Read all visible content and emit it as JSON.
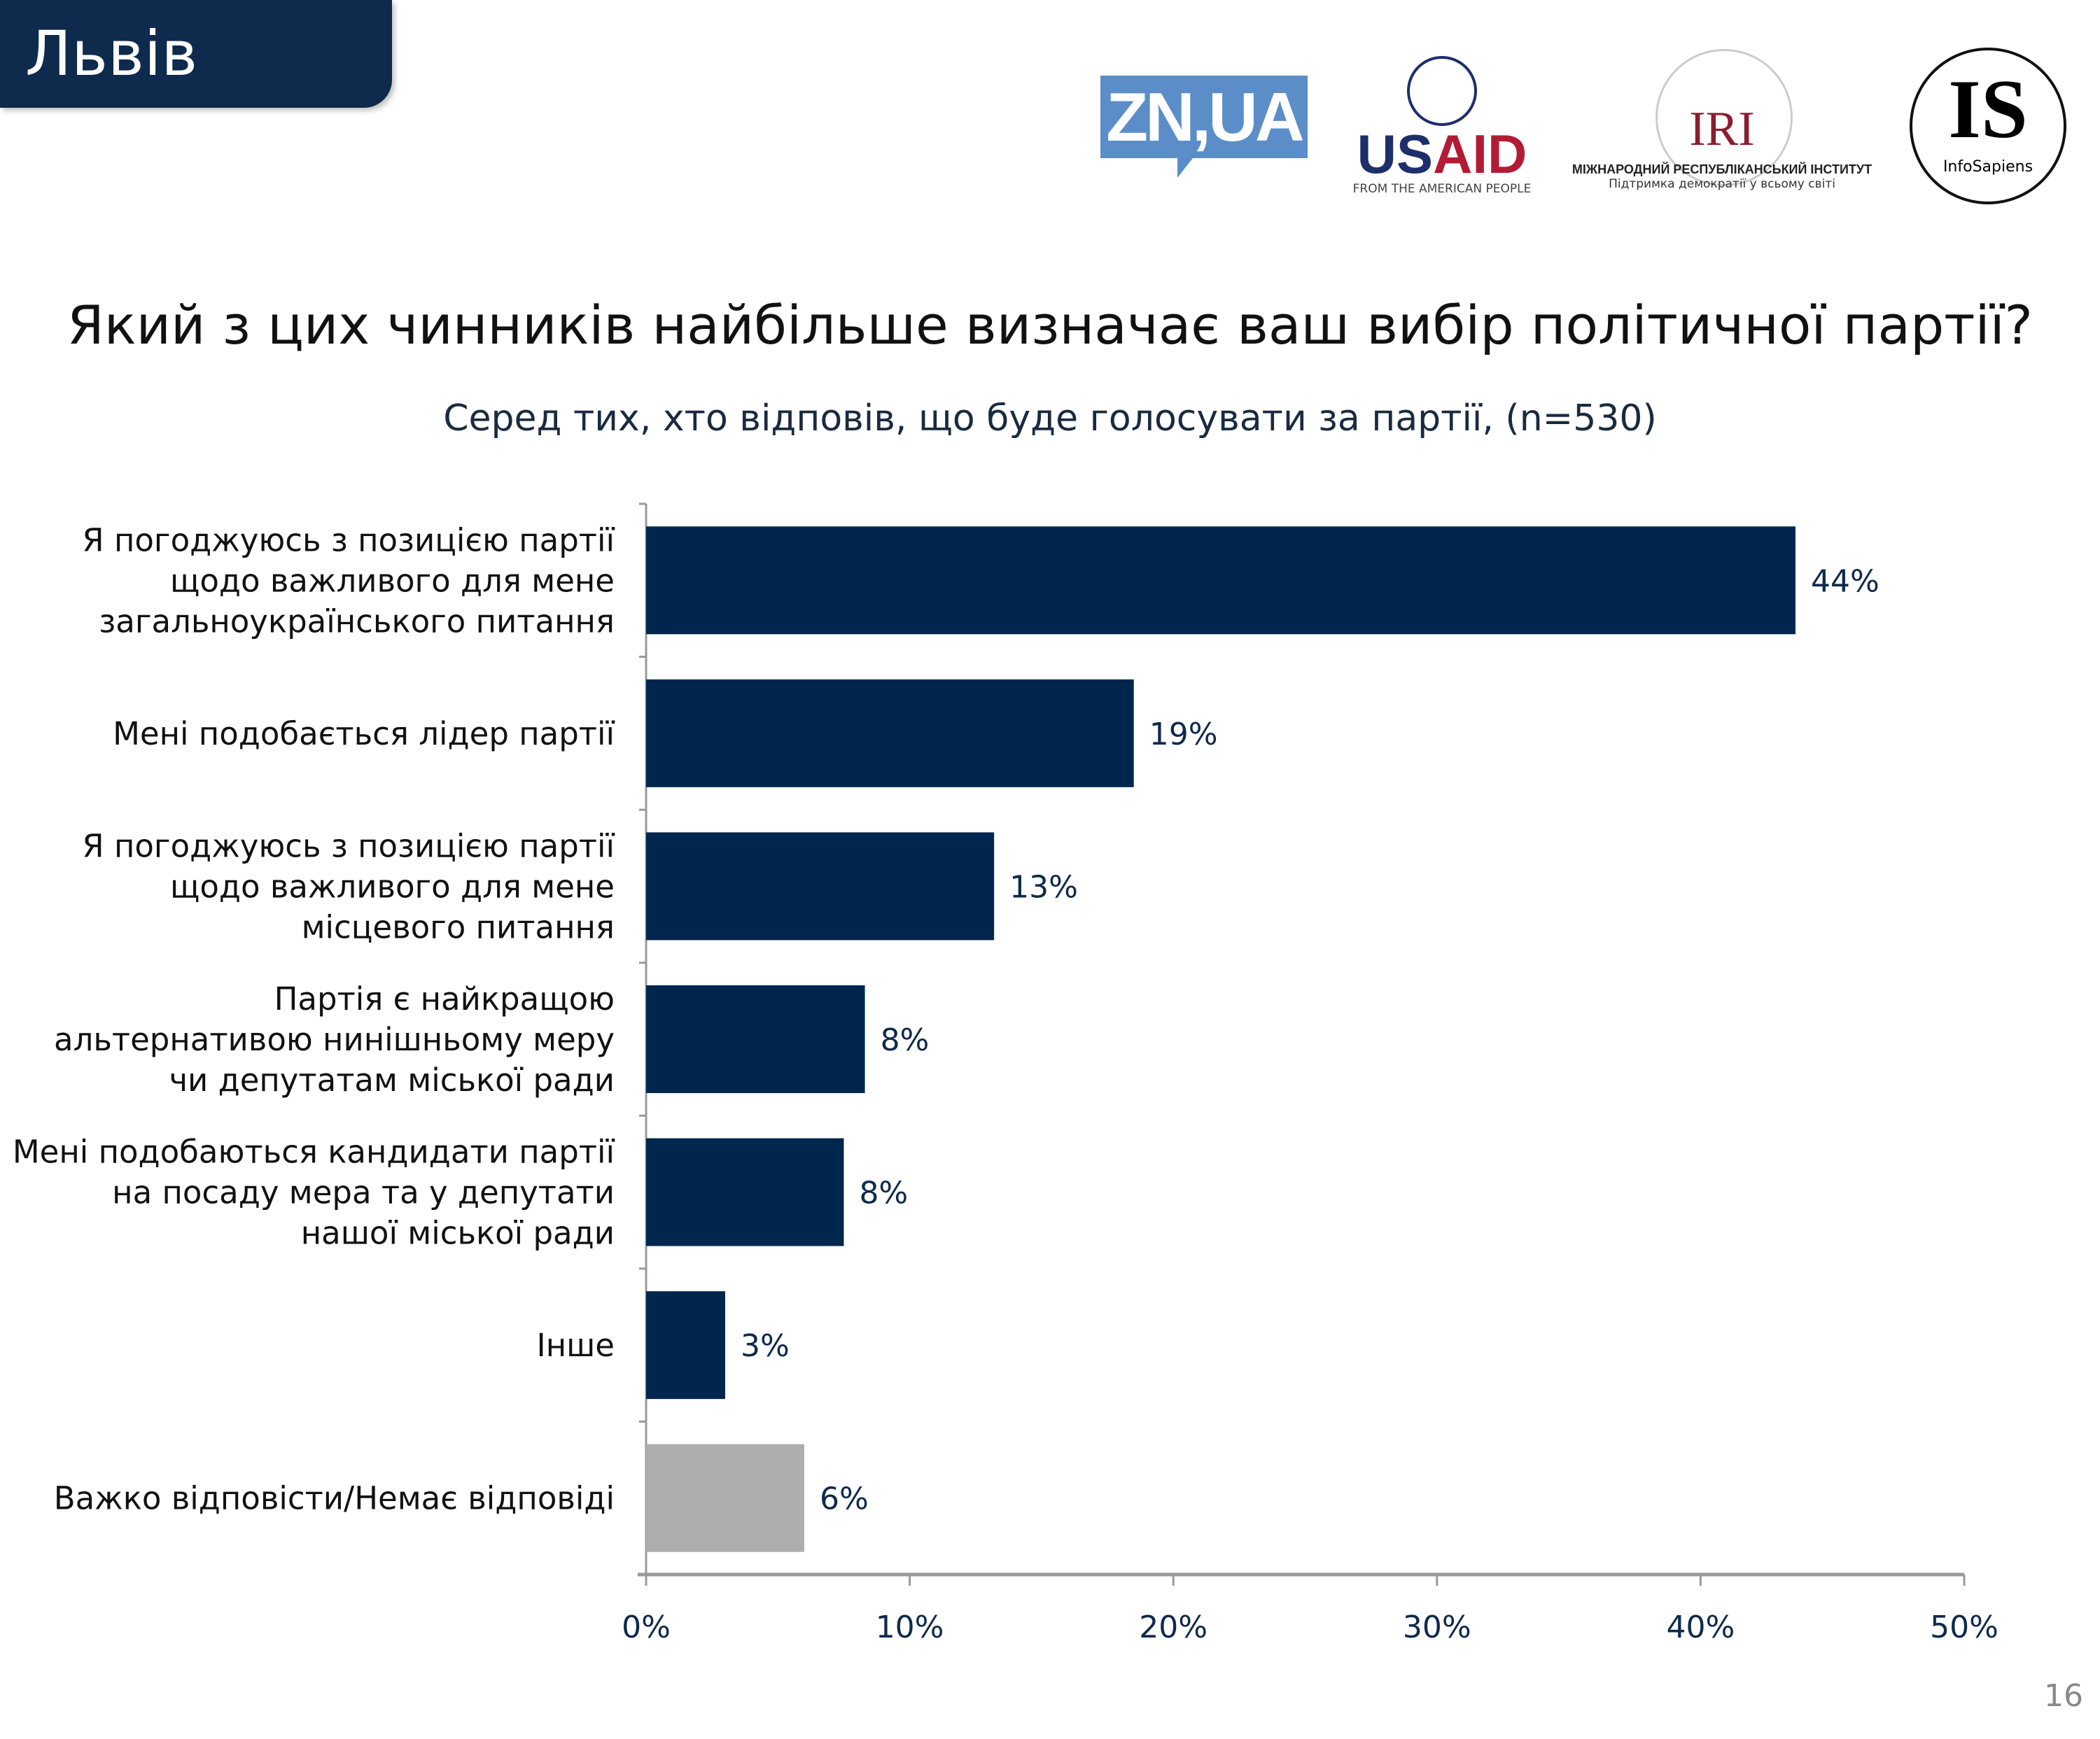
{
  "header": {
    "city": "Львів",
    "page_number": "16"
  },
  "logos": {
    "zn": "ZN,UA",
    "usaid": {
      "name": "USAID",
      "tagline": "FROM THE AMERICAN PEOPLE"
    },
    "iri": {
      "name": "IRI",
      "line1": "МІЖНАРОДНИЙ РЕСПУБЛІКАНСЬКИЙ ІНСТИТУТ",
      "line2": "Підтримка демократії у всьому світі"
    },
    "infosapiens": {
      "name": "IS",
      "sub": "InfoSapiens"
    }
  },
  "chart_data": {
    "type": "bar",
    "orientation": "horizontal",
    "title": "Який з цих чинників найбільше визначає ваш вибір політичної партії?",
    "subtitle": "Серед тих, хто відповів, що буде голосувати за партії, (n=530)",
    "categories": [
      [
        "Я погоджуюсь з позицією партії",
        "щодо важливого для мене",
        "загальноукраїнського питання"
      ],
      [
        "Мені подобається лідер партії"
      ],
      [
        "Я погоджуюсь з позицією партії",
        "щодо важливого для мене",
        "місцевого питання"
      ],
      [
        "Партія є найкращою",
        "альтернативою нинішньому меру",
        "чи депутатам міської ради"
      ],
      [
        "Мені подобаються кандидати партії",
        "на посаду мера та у депутати",
        "нашої міської ради"
      ],
      [
        "Інше"
      ],
      [
        "Важко відповісти/Немає відповіді"
      ]
    ],
    "values": [
      43.6,
      18.5,
      13.2,
      8.3,
      7.5,
      3.0,
      6.0
    ],
    "labels": [
      "44%",
      "19%",
      "13%",
      "8%",
      "8%",
      "3%",
      "6%"
    ],
    "colors": [
      "#00264d",
      "#00264d",
      "#00264d",
      "#00264d",
      "#00264d",
      "#00264d",
      "#adadad"
    ],
    "xlim": [
      0,
      50
    ],
    "xticks": [
      0,
      10,
      20,
      30,
      40,
      50
    ],
    "xtick_labels": [
      "0%",
      "10%",
      "20%",
      "30%",
      "40%",
      "50%"
    ],
    "xlabel": "",
    "ylabel": "",
    "grid": false
  }
}
